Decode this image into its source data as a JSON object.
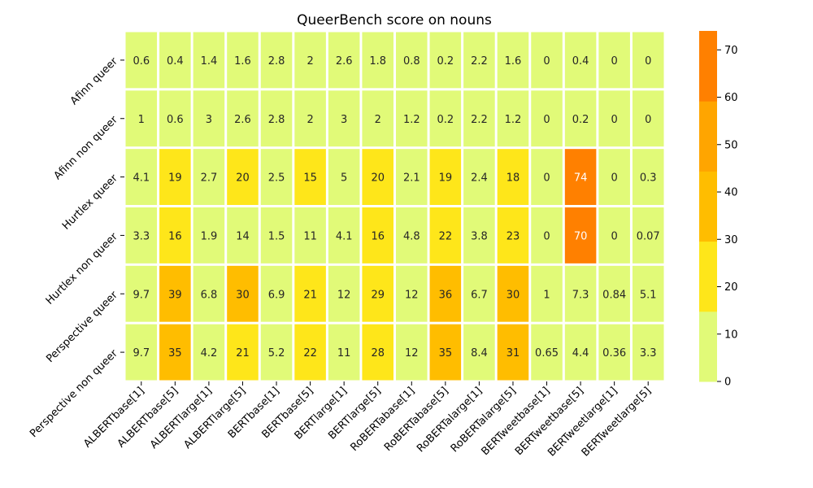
{
  "chart_data": {
    "type": "heatmap",
    "title": "QueerBench score on nouns",
    "rows": [
      "Afinn queer",
      "Afinn non queer",
      "Hurtlex queer",
      "Hurtlex non queer",
      "Perspective queer",
      "Perspective non queer"
    ],
    "columns": [
      "ALBERTbase[1]",
      "ALBERTbase[5]",
      "ALBERTlarge[1]",
      "ALBERTlarge[5]",
      "BERTbase[1]",
      "BERTbase[5]",
      "BERTlarge[1]",
      "BERTlarge[5]",
      "RoBERTabase[1]",
      "RoBERTabase[5]",
      "RoBERTalarge[1]",
      "RoBERTalarge[5]",
      "BERTweetbase[1]",
      "BERTweetbase[5]",
      "BERTweetlarge[1]",
      "BERTweetlarge[5]"
    ],
    "values": [
      [
        "0.6",
        "0.4",
        "1.4",
        "1.6",
        "2.8",
        "2",
        "2.6",
        "1.8",
        "0.8",
        "0.2",
        "2.2",
        "1.6",
        "0",
        "0.4",
        "0",
        "0"
      ],
      [
        "1",
        "0.6",
        "3",
        "2.6",
        "2.8",
        "2",
        "3",
        "2",
        "1.2",
        "0.2",
        "2.2",
        "1.2",
        "0",
        "0.2",
        "0",
        "0"
      ],
      [
        "4.1",
        "19",
        "2.7",
        "20",
        "2.5",
        "15",
        "5",
        "20",
        "2.1",
        "19",
        "2.4",
        "18",
        "0",
        "74",
        "0",
        "0.3"
      ],
      [
        "3.3",
        "16",
        "1.9",
        "14",
        "1.5",
        "11",
        "4.1",
        "16",
        "4.8",
        "22",
        "3.8",
        "23",
        "0",
        "70",
        "0",
        "0.07"
      ],
      [
        "9.7",
        "39",
        "6.8",
        "30",
        "6.9",
        "21",
        "12",
        "29",
        "12",
        "36",
        "6.7",
        "30",
        "1",
        "7.3",
        "0.84",
        "5.1"
      ],
      [
        "9.7",
        "35",
        "4.2",
        "21",
        "5.2",
        "22",
        "11",
        "28",
        "12",
        "35",
        "8.4",
        "31",
        "0.65",
        "4.4",
        "0.36",
        "3.3"
      ]
    ],
    "colorbar": {
      "range": [
        0,
        74
      ],
      "ticks": [
        "0",
        "10",
        "20",
        "30",
        "40",
        "50",
        "60",
        "70"
      ],
      "bins": [
        {
          "from": 0,
          "to": 14.8,
          "color": "#e1fa78"
        },
        {
          "from": 14.8,
          "to": 29.6,
          "color": "#fee61a"
        },
        {
          "from": 29.6,
          "to": 44.4,
          "color": "#ffbd00"
        },
        {
          "from": 44.4,
          "to": 59.2,
          "color": "#ffa500"
        },
        {
          "from": 59.2,
          "to": 74,
          "color": "#ff8000"
        }
      ]
    },
    "dark_text_color": "#262626",
    "light_text_color": "#ffffff"
  }
}
